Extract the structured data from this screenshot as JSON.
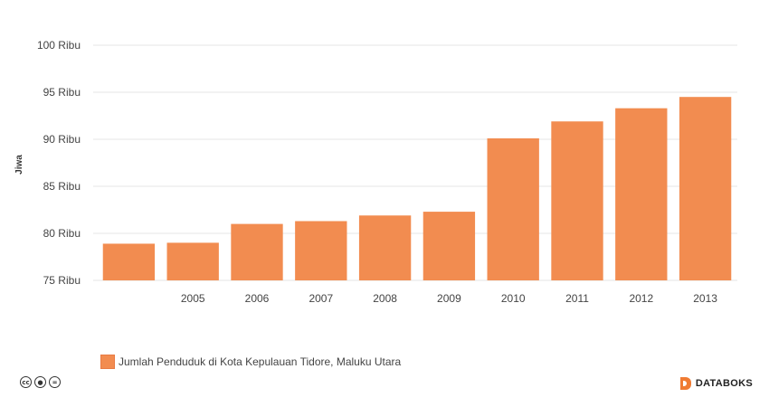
{
  "chart_data": {
    "type": "bar",
    "categories": [
      "",
      "2005",
      "2006",
      "2007",
      "2008",
      "2009",
      "2010",
      "2011",
      "2012",
      "2013"
    ],
    "series": [
      {
        "name": "Jumlah Penduduk di Kota Kepulauan Tidore, Maluku Utara",
        "values": [
          78900,
          79000,
          81000,
          81300,
          81900,
          82300,
          90100,
          91900,
          93300,
          94500
        ],
        "color": "#f28c50"
      }
    ],
    "ylabel": "Jiwa",
    "ylim": [
      75000,
      100000
    ],
    "yticks": [
      {
        "value": 75000,
        "label": "75 Ribu"
      },
      {
        "value": 80000,
        "label": "80 Ribu"
      },
      {
        "value": 85000,
        "label": "85 Ribu"
      },
      {
        "value": 90000,
        "label": "90 Ribu"
      },
      {
        "value": 95000,
        "label": "95 Ribu"
      },
      {
        "value": 100000,
        "label": "100 Ribu"
      }
    ],
    "grid": true,
    "legend_position": "bottom-left"
  },
  "legend": {
    "label": "Jumlah Penduduk di Kota Kepulauan Tidore, Maluku Utara"
  },
  "footer": {
    "license_icons": [
      "cc-icon",
      "by-icon",
      "nd-icon"
    ],
    "brand": "DATABOKS"
  }
}
